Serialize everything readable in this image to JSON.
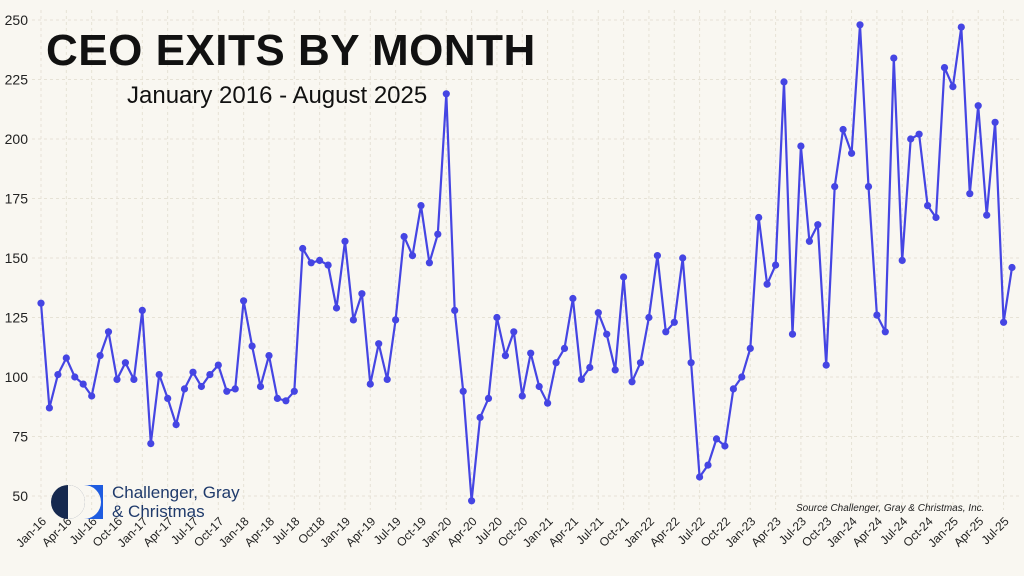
{
  "header": {
    "title": "CEO EXITS BY MONTH",
    "subtitle": "January 2016 - August 2025"
  },
  "footer": {
    "source": "Source Challenger, Gray & Christmas, Inc.",
    "logo_line1": "Challenger, Gray",
    "logo_line2": "& Christmas"
  },
  "colors": {
    "line": "#4545e3",
    "grid": "#e6e2d6",
    "logo_dark": "#16294f",
    "logo_accent": "#1f5ce0"
  },
  "chart_data": {
    "type": "line",
    "title": "CEO EXITS BY MONTH",
    "subtitle": "January 2016 - August 2025",
    "ylim": [
      45,
      250
    ],
    "yticks": [
      50,
      75,
      100,
      125,
      150,
      175,
      200,
      225,
      250
    ],
    "grid": true,
    "tick_labels": [
      "Jan-16",
      "Apr-16",
      "Jul-16",
      "Oct-16",
      "Jan-17",
      "Apr-17",
      "Jul-17",
      "Oct-17",
      "Jan-18",
      "Apr-18",
      "Jul-18",
      "Oct18",
      "Jan-19",
      "Apr-19",
      "Jul-19",
      "Oct-19",
      "Jan-20",
      "Apr-20",
      "Jul-20",
      "Oct-20",
      "Jan-21",
      "Apr-21",
      "Jul-21",
      "Oct-21",
      "Jan-22",
      "Apr-22",
      "Jul-22",
      "Oct-22",
      "Jan-23",
      "Apr-23",
      "Jul-23",
      "Oct-23",
      "Jan-24",
      "Apr-24",
      "Jul-24",
      "Oct-24",
      "Jan-25",
      "Apr-25",
      "Jul-25"
    ],
    "values": [
      131,
      87,
      101,
      108,
      100,
      97,
      92,
      109,
      119,
      99,
      106,
      99,
      128,
      72,
      101,
      91,
      80,
      95,
      102,
      96,
      101,
      105,
      94,
      95,
      132,
      113,
      96,
      109,
      91,
      90,
      94,
      154,
      148,
      149,
      147,
      129,
      157,
      124,
      135,
      97,
      114,
      99,
      124,
      159,
      151,
      172,
      148,
      160,
      219,
      128,
      94,
      48,
      83,
      91,
      125,
      109,
      119,
      92,
      110,
      96,
      89,
      106,
      112,
      133,
      99,
      104,
      127,
      118,
      103,
      142,
      98,
      106,
      125,
      151,
      119,
      123,
      150,
      106,
      58,
      63,
      74,
      71,
      95,
      100,
      112,
      167,
      139,
      147,
      224,
      118,
      197,
      157,
      164,
      105,
      180,
      204,
      194,
      248,
      180,
      126,
      119,
      234,
      149,
      200,
      202,
      172,
      167,
      230,
      222,
      247,
      177,
      214,
      168,
      207,
      123,
      146
    ]
  }
}
